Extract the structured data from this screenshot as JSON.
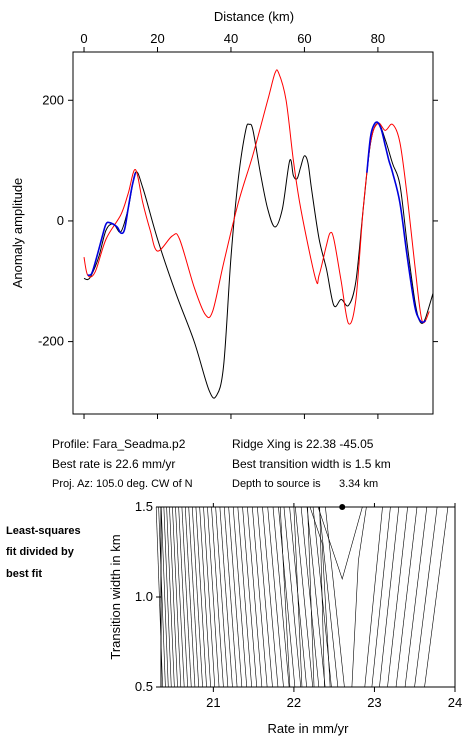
{
  "chart_data": [
    {
      "type": "line",
      "xlabel": "Distance (km)",
      "ylabel": "Anomaly amplitude",
      "xlim": [
        -3,
        95
      ],
      "ylim": [
        -320,
        280
      ],
      "xticks": [
        0,
        20,
        40,
        60,
        80
      ],
      "yticks": [
        -200,
        0,
        200
      ],
      "series": [
        {
          "color": "#000000",
          "values": [
            [
              0,
              -95
            ],
            [
              1,
              -97
            ],
            [
              2,
              -90
            ],
            [
              4,
              -60
            ],
            [
              6,
              -15
            ],
            [
              8,
              -5
            ],
            [
              10,
              -18
            ],
            [
              12,
              20
            ],
            [
              14,
              80
            ],
            [
              16,
              55
            ],
            [
              20,
              -30
            ],
            [
              25,
              -120
            ],
            [
              30,
              -200
            ],
            [
              34,
              -280
            ],
            [
              36,
              -290
            ],
            [
              38,
              -240
            ],
            [
              40,
              -60
            ],
            [
              42,
              70
            ],
            [
              44,
              150
            ],
            [
              45,
              160
            ],
            [
              46,
              150
            ],
            [
              48,
              80
            ],
            [
              50,
              20
            ],
            [
              52,
              -10
            ],
            [
              54,
              20
            ],
            [
              56,
              100
            ],
            [
              57,
              75
            ],
            [
              58,
              70
            ],
            [
              59,
              90
            ],
            [
              60,
              108
            ],
            [
              61,
              95
            ],
            [
              62,
              50
            ],
            [
              64,
              -30
            ],
            [
              66,
              -80
            ],
            [
              68,
              -140
            ],
            [
              70,
              -130
            ],
            [
              72,
              -140
            ],
            [
              74,
              -100
            ],
            [
              76,
              20
            ],
            [
              78,
              130
            ],
            [
              80,
              162
            ],
            [
              82,
              135
            ],
            [
              84,
              95
            ],
            [
              86,
              60
            ],
            [
              88,
              -40
            ],
            [
              90,
              -130
            ],
            [
              91,
              -160
            ],
            [
              92,
              -170
            ],
            [
              93,
              -160
            ],
            [
              95,
              -120
            ]
          ]
        },
        {
          "color": "#ff0000",
          "values": [
            [
              0,
              -60
            ],
            [
              1,
              -90
            ],
            [
              3,
              -85
            ],
            [
              6,
              -30
            ],
            [
              10,
              10
            ],
            [
              12,
              45
            ],
            [
              14,
              85
            ],
            [
              16,
              30
            ],
            [
              18,
              -15
            ],
            [
              20,
              -50
            ],
            [
              24,
              -25
            ],
            [
              26,
              -30
            ],
            [
              30,
              -110
            ],
            [
              33,
              -155
            ],
            [
              35,
              -150
            ],
            [
              38,
              -70
            ],
            [
              42,
              30
            ],
            [
              46,
              110
            ],
            [
              50,
              200
            ],
            [
              52,
              245
            ],
            [
              53,
              245
            ],
            [
              55,
              200
            ],
            [
              57,
              100
            ],
            [
              59,
              20
            ],
            [
              63,
              -95
            ],
            [
              64,
              -90
            ],
            [
              66,
              -40
            ],
            [
              67,
              -20
            ],
            [
              68,
              -30
            ],
            [
              70,
              -100
            ],
            [
              72,
              -170
            ],
            [
              74,
              -130
            ],
            [
              76,
              20
            ],
            [
              78,
              130
            ],
            [
              80,
              162
            ],
            [
              82,
              150
            ],
            [
              84,
              160
            ],
            [
              86,
              130
            ],
            [
              88,
              40
            ],
            [
              90,
              -70
            ],
            [
              92,
              -165
            ],
            [
              94,
              -150
            ]
          ]
        },
        {
          "color": "#0000dd",
          "values": [
            [
              1,
              -90
            ],
            [
              2,
              -88
            ],
            [
              3,
              -70
            ],
            [
              5,
              -25
            ],
            [
              6,
              -5
            ],
            [
              7,
              -3
            ],
            [
              9,
              -10
            ],
            [
              10,
              -20
            ],
            [
              11,
              -15
            ],
            [
              12,
              20
            ],
            [
              13,
              55
            ],
            [
              14,
              80
            ],
            [
              77,
              80
            ],
            [
              78,
              140
            ],
            [
              79,
              160
            ],
            [
              80,
              163
            ],
            [
              81,
              150
            ],
            [
              82,
              125
            ],
            [
              83,
              100
            ],
            [
              84,
              80
            ],
            [
              86,
              30
            ],
            [
              88,
              -60
            ],
            [
              90,
              -140
            ],
            [
              91,
              -160
            ],
            [
              92,
              -168
            ],
            [
              93,
              -165
            ]
          ]
        }
      ]
    },
    {
      "type": "contour",
      "xlabel": "Rate in mm/yr",
      "ylabel": "Transition width in km",
      "xlim": [
        20.35,
        24.0
      ],
      "ylim": [
        0.5,
        1.5
      ],
      "xticks": [
        21,
        22,
        23,
        24
      ],
      "yticks": [
        0.5,
        1.0,
        1.5
      ],
      "best_fit_point": {
        "rate": 22.6,
        "width": 1.5
      }
    }
  ],
  "info": {
    "profile": "Profile: Fara_Seadma.p2",
    "ridge_xing": "Ridge Xing is 22.38 -45.05",
    "best_rate": "Best rate is 22.6 mm/yr",
    "best_width": "Best transition width is 1.5 km",
    "proj_az": "Proj. Az: 105.0 deg. CW of N",
    "depth_label": "Depth to source is",
    "depth_value": "3.34 km"
  },
  "side_caption": [
    "Least-squares",
    "fit divided by",
    "best fit"
  ]
}
